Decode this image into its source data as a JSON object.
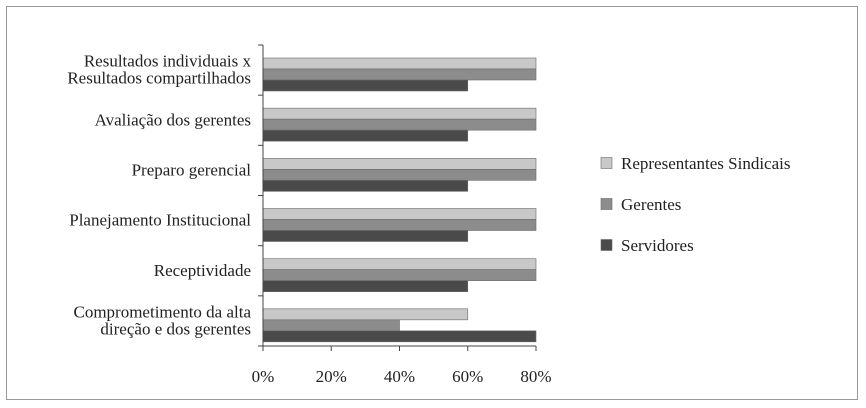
{
  "chart_data": {
    "type": "bar",
    "orientation": "horizontal",
    "categories": [
      [
        "Resultados individuais x",
        "Resultados compartilhados"
      ],
      [
        "Avaliação dos gerentes"
      ],
      [
        "Preparo gerencial"
      ],
      [
        "Planejamento Institucional"
      ],
      [
        "Receptividade"
      ],
      [
        "Comprometimento da alta",
        "direção e dos gerentes"
      ]
    ],
    "series": [
      {
        "name": "Representantes Sindicais",
        "color": "#c8c8c8",
        "values": [
          80,
          80,
          80,
          80,
          80,
          60
        ]
      },
      {
        "name": "Gerentes",
        "color": "#8c8c8c",
        "values": [
          80,
          80,
          80,
          80,
          80,
          40
        ]
      },
      {
        "name": "Servidores",
        "color": "#4a4a4a",
        "values": [
          60,
          60,
          60,
          60,
          60,
          80
        ]
      }
    ],
    "xlim": [
      0,
      80
    ],
    "xticks": [
      "0%",
      "20%",
      "40%",
      "60%",
      "80%"
    ],
    "legend": "right",
    "grid": false
  }
}
